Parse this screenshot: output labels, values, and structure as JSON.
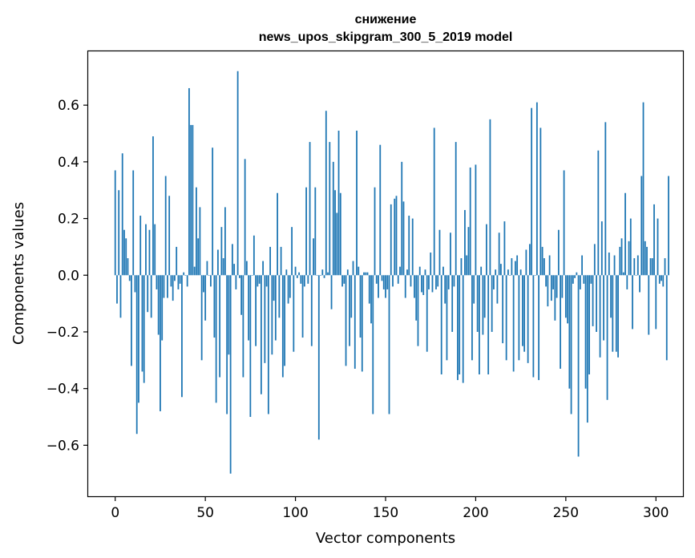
{
  "chart_data": {
    "type": "bar",
    "title_line1": "снижение",
    "title_line2": "news_upos_skipgram_300_5_2019 model",
    "xlabel": "Vector components",
    "ylabel": "Components values",
    "xlim": [
      -15,
      315
    ],
    "ylim": [
      -0.78,
      0.79
    ],
    "xticks": [
      0,
      50,
      100,
      150,
      200,
      250,
      300
    ],
    "yticks": [
      -0.6,
      -0.4,
      -0.2,
      0.0,
      0.2,
      0.4,
      0.6
    ],
    "xtick_labels": [
      "0",
      "50",
      "100",
      "150",
      "200",
      "250",
      "300"
    ],
    "ytick_labels": [
      "−0.6",
      "−0.4",
      "−0.2",
      "0.0",
      "0.2",
      "0.4",
      "0.6"
    ],
    "bar_color": "#1f77b4",
    "grid": false,
    "values": [
      0.37,
      -0.1,
      0.3,
      -0.15,
      0.43,
      0.16,
      0.13,
      0.06,
      -0.02,
      -0.32,
      0.37,
      -0.06,
      -0.56,
      -0.45,
      0.21,
      -0.34,
      -0.38,
      0.18,
      -0.13,
      0.16,
      -0.15,
      0.49,
      0.18,
      -0.05,
      -0.21,
      -0.48,
      -0.23,
      -0.08,
      0.35,
      -0.08,
      0.28,
      -0.04,
      -0.09,
      -0.02,
      0.1,
      -0.05,
      -0.03,
      -0.43,
      0.01,
      0.0,
      -0.04,
      0.66,
      0.53,
      0.53,
      0.03,
      0.31,
      0.13,
      0.24,
      -0.3,
      -0.06,
      -0.16,
      0.05,
      0.0,
      -0.04,
      0.45,
      -0.22,
      -0.45,
      0.09,
      -0.36,
      0.17,
      0.06,
      0.24,
      -0.49,
      -0.28,
      -0.7,
      0.11,
      0.04,
      -0.05,
      0.72,
      -0.01,
      -0.14,
      -0.36,
      0.41,
      0.05,
      -0.23,
      -0.5,
      0.0,
      0.14,
      -0.25,
      -0.04,
      -0.03,
      -0.42,
      0.05,
      -0.31,
      -0.04,
      -0.49,
      0.1,
      -0.28,
      -0.09,
      -0.23,
      0.29,
      -0.15,
      0.1,
      -0.36,
      -0.32,
      0.02,
      -0.1,
      -0.08,
      0.17,
      -0.27,
      0.03,
      -0.01,
      0.01,
      -0.03,
      -0.22,
      -0.04,
      0.31,
      -0.03,
      0.47,
      -0.25,
      0.13,
      0.31,
      0.0,
      -0.58,
      0.0,
      0.02,
      -0.01,
      0.58,
      0.01,
      0.47,
      -0.12,
      0.4,
      0.3,
      0.22,
      0.51,
      0.29,
      -0.04,
      -0.03,
      -0.32,
      0.02,
      -0.25,
      -0.15,
      0.05,
      -0.33,
      0.51,
      0.03,
      -0.22,
      -0.34,
      0.01,
      0.01,
      0.01,
      -0.1,
      -0.17,
      -0.49,
      0.31,
      -0.03,
      -0.08,
      0.46,
      -0.02,
      -0.05,
      -0.08,
      -0.05,
      -0.49,
      0.25,
      -0.04,
      0.27,
      0.28,
      -0.03,
      0.03,
      0.4,
      0.26,
      -0.08,
      0.02,
      0.21,
      -0.04,
      0.2,
      -0.08,
      -0.16,
      -0.25,
      0.03,
      -0.06,
      -0.07,
      0.02,
      -0.27,
      -0.05,
      0.08,
      -0.06,
      0.52,
      -0.05,
      -0.04,
      0.16,
      -0.35,
      0.03,
      -0.1,
      -0.3,
      -0.05,
      0.15,
      -0.2,
      -0.04,
      0.47,
      -0.37,
      -0.35,
      0.06,
      -0.38,
      0.23,
      0.07,
      0.17,
      0.38,
      -0.3,
      -0.1,
      0.39,
      -0.2,
      -0.35,
      0.03,
      -0.21,
      -0.15,
      0.18,
      -0.35,
      0.55,
      -0.2,
      -0.05,
      0.02,
      -0.1,
      0.15,
      0.04,
      -0.24,
      0.19,
      -0.3,
      0.02,
      0.0,
      0.06,
      -0.34,
      0.05,
      0.07,
      -0.3,
      0.02,
      -0.25,
      -0.27,
      0.09,
      -0.31,
      0.11,
      0.59,
      -0.36,
      0.0,
      0.61,
      -0.37,
      0.52,
      0.1,
      0.06,
      -0.04,
      -0.11,
      0.07,
      -0.09,
      -0.05,
      -0.16,
      -0.08,
      0.16,
      -0.33,
      -0.08,
      0.37,
      -0.15,
      -0.17,
      -0.4,
      -0.49,
      -0.03,
      -0.01,
      0.01,
      -0.64,
      -0.05,
      0.07,
      -0.03,
      -0.4,
      -0.52,
      -0.35,
      -0.03,
      -0.18,
      0.11,
      -0.2,
      0.44,
      -0.29,
      0.19,
      -0.23,
      0.54,
      -0.44,
      0.08,
      -0.15,
      -0.27,
      0.07,
      -0.27,
      -0.29,
      0.1,
      0.13,
      0.01,
      0.29,
      -0.05,
      0.12,
      0.2,
      -0.19,
      0.06,
      0.0,
      0.07,
      -0.06,
      0.35,
      0.61,
      0.12,
      0.1,
      -0.21,
      0.06,
      0.06,
      0.25,
      -0.19,
      0.2,
      -0.03,
      -0.02,
      -0.04,
      0.06,
      -0.3,
      0.35
    ]
  }
}
